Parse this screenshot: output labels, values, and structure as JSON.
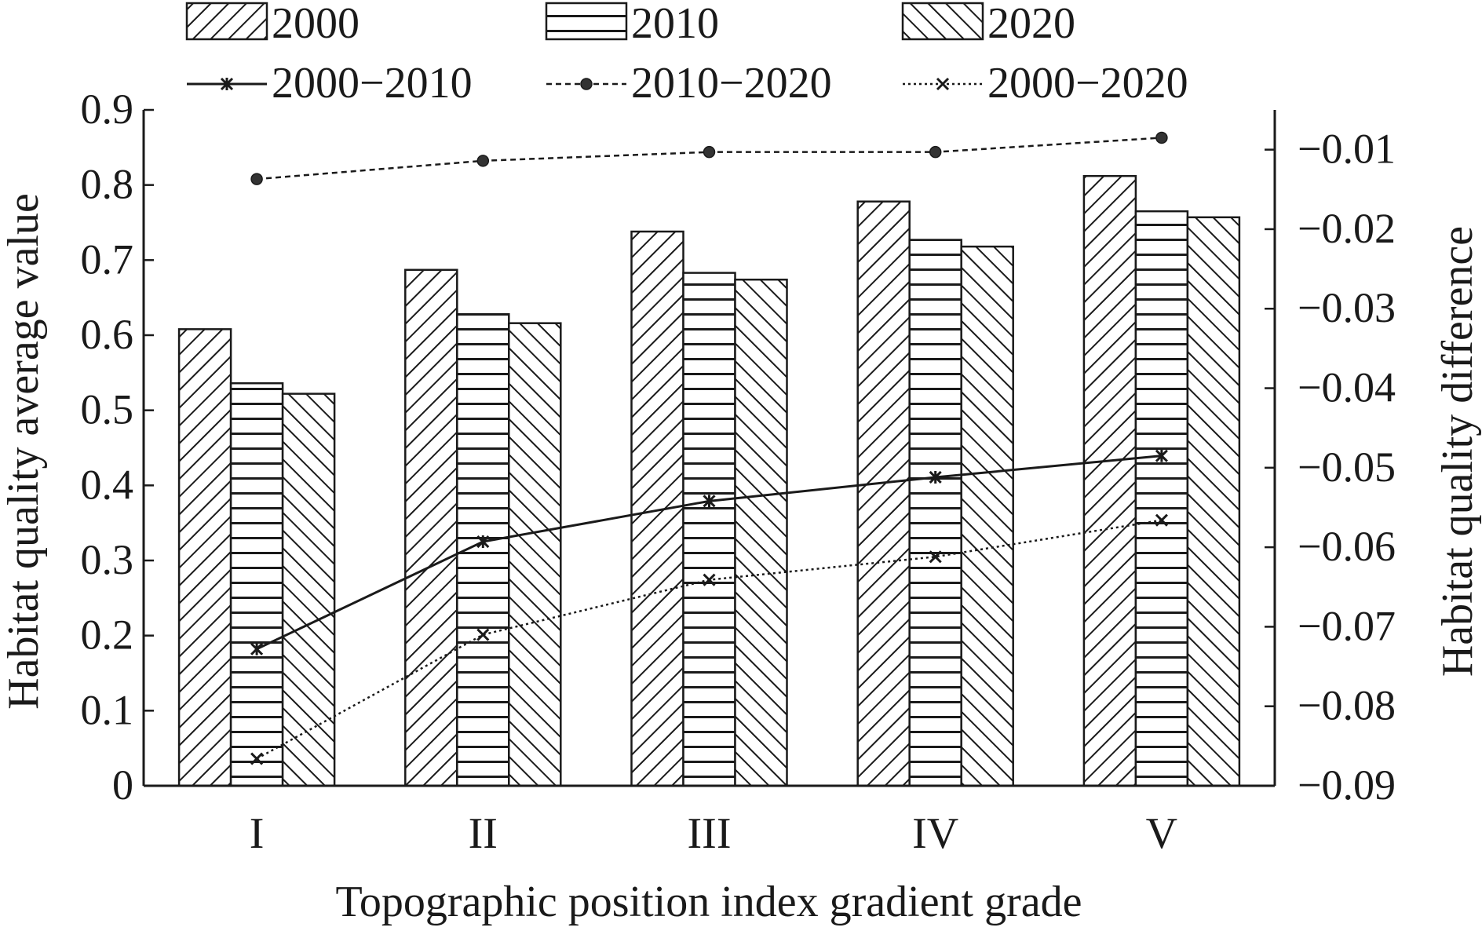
{
  "chart_data": {
    "type": "bar",
    "xlabel": "Topographic position index gradient grade",
    "ylabel_left": "Habitat quality average value",
    "ylabel_right": "Habitat quality difference",
    "categories": [
      "I",
      "II",
      "III",
      "IV",
      "V"
    ],
    "ylim_left": [
      0,
      0.9
    ],
    "yticks_left": [
      "0",
      "0.1",
      "0.2",
      "0.3",
      "0.4",
      "0.5",
      "0.6",
      "0.7",
      "0.8",
      "0.9"
    ],
    "ylim_right": [
      -0.09,
      -0.005
    ],
    "yticks_right": [
      "−0.09",
      "−0.08",
      "−0.07",
      "−0.06",
      "−0.05",
      "−0.04",
      "−0.03",
      "−0.02",
      "−0.01"
    ],
    "bar_series": [
      {
        "name": "2000",
        "pattern": "diag-up",
        "values": [
          0.608,
          0.687,
          0.738,
          0.778,
          0.812
        ]
      },
      {
        "name": "2010",
        "pattern": "horizontal",
        "values": [
          0.536,
          0.628,
          0.683,
          0.727,
          0.765
        ]
      },
      {
        "name": "2020",
        "pattern": "diag-down",
        "values": [
          0.522,
          0.616,
          0.674,
          0.718,
          0.757
        ]
      }
    ],
    "line_series": [
      {
        "name": "2000−2010",
        "style": "solid",
        "marker": "star",
        "axis": "right",
        "values": [
          -0.0728,
          -0.0593,
          -0.0542,
          -0.0512,
          -0.0485
        ]
      },
      {
        "name": "2010−2020",
        "style": "dashed",
        "marker": "dot",
        "axis": "right",
        "values": [
          -0.0137,
          -0.0114,
          -0.0103,
          -0.0103,
          -0.0085
        ]
      },
      {
        "name": "2000−2020",
        "style": "dotted",
        "marker": "x",
        "axis": "right",
        "values": [
          -0.0866,
          -0.071,
          -0.0641,
          -0.0612,
          -0.0566
        ]
      }
    ],
    "legend_position": "top",
    "grid": false,
    "colors": {
      "ink": "#1a1a1a",
      "background": "#ffffff"
    }
  }
}
